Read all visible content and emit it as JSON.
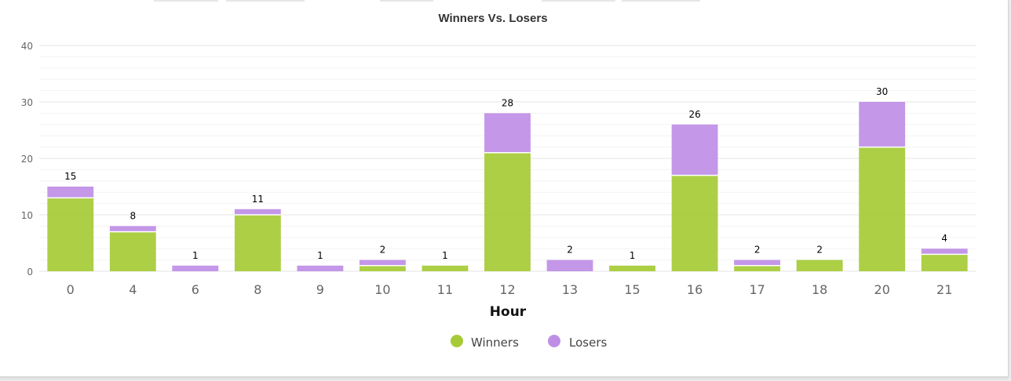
{
  "chart_data": {
    "type": "bar",
    "stacked": true,
    "title": "Winners Vs. Losers",
    "xlabel": "Hour",
    "ylabel": "",
    "ylim": [
      0,
      40
    ],
    "yticks": [
      0,
      10,
      20,
      30,
      40
    ],
    "grid": true,
    "legend_position": "bottom",
    "categories": [
      "0",
      "4",
      "6",
      "8",
      "9",
      "10",
      "11",
      "12",
      "13",
      "15",
      "16",
      "17",
      "18",
      "20",
      "21"
    ],
    "series": [
      {
        "name": "Winners",
        "color": "#a6cb37",
        "values": [
          13,
          7,
          0,
          10,
          0,
          1,
          1,
          21,
          0,
          1,
          17,
          1,
          2,
          22,
          3
        ]
      },
      {
        "name": "Losers",
        "color": "#bf8fe6",
        "values": [
          2,
          1,
          1,
          1,
          1,
          1,
          0,
          7,
          2,
          0,
          9,
          1,
          0,
          8,
          1
        ]
      }
    ],
    "totals": [
      15,
      8,
      1,
      11,
      1,
      2,
      1,
      28,
      2,
      1,
      26,
      2,
      2,
      30,
      4
    ]
  }
}
